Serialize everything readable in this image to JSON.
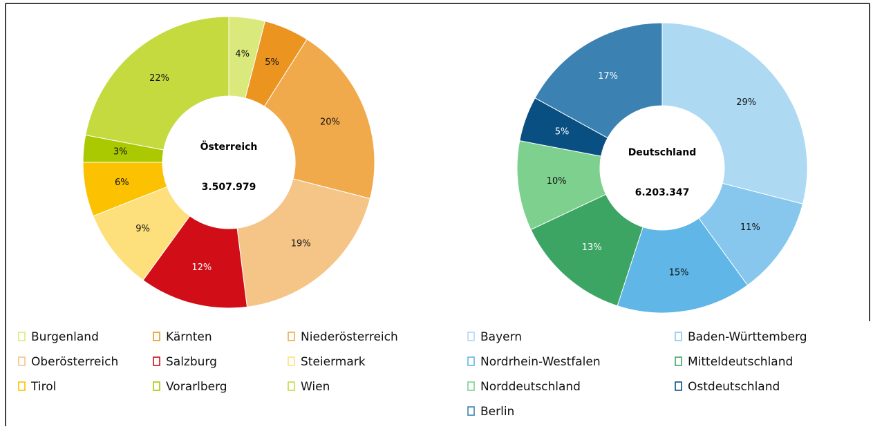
{
  "chart_data": [
    {
      "type": "donut",
      "title": "Österreich",
      "total": "3.507.979",
      "categories": [
        "Burgenland",
        "Kärnten",
        "Niederösterreich",
        "Oberösterreich",
        "Salzburg",
        "Steiermark",
        "Tirol",
        "Vorarlberg",
        "Wien"
      ],
      "values": [
        4,
        5,
        20,
        19,
        12,
        9,
        6,
        3,
        22
      ],
      "value_labels": [
        "4%",
        "5%",
        "20%",
        "19%",
        "12%",
        "9%",
        "6%",
        "3%",
        "22%"
      ],
      "colors": [
        "#d9e97c",
        "#eb9420",
        "#f0aa4b",
        "#f5c487",
        "#d10d17",
        "#fde07c",
        "#fcc100",
        "#aac900",
        "#c5da3f"
      ],
      "legend": "bottom"
    },
    {
      "type": "donut",
      "title": "Deutschland",
      "total": "6.203.347",
      "categories": [
        "Bayern",
        "Baden-Württemberg",
        "Nordrhein-Westfalen",
        "Mitteldeutschland",
        "Norddeutschland",
        "Ostdeutschland",
        "Berlin"
      ],
      "values": [
        29,
        11,
        15,
        13,
        10,
        5,
        17
      ],
      "value_labels": [
        "29%",
        "11%",
        "15%",
        "13%",
        "10%",
        "5%",
        "17%"
      ],
      "colors": [
        "#add9f3",
        "#88c7ed",
        "#5fb6e7",
        "#3ca564",
        "#7dd08e",
        "#0a4f82",
        "#3b82b2"
      ],
      "legend": "bottom"
    }
  ]
}
